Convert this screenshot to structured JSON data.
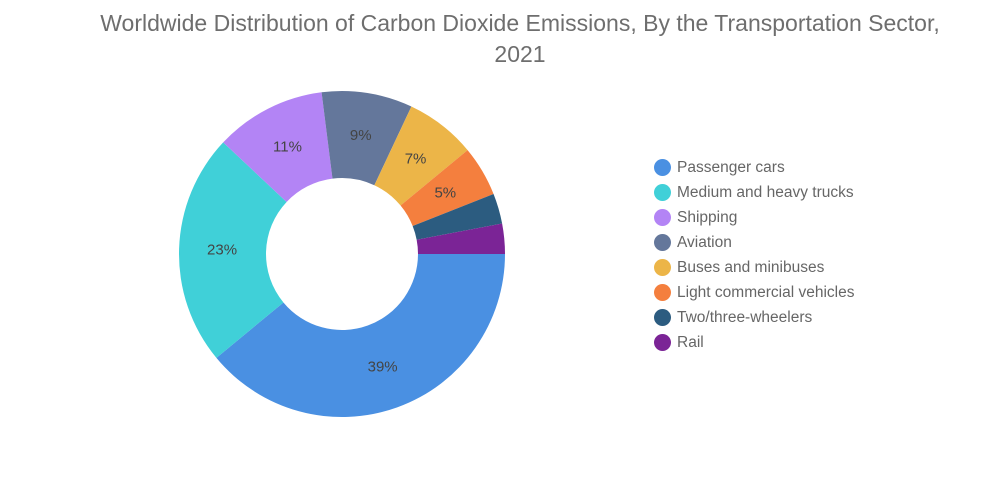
{
  "chart_data": {
    "type": "pie",
    "title": "Worldwide Distribution of Carbon Dioxide Emissions, By the Transportation Sector, 2021",
    "donut": true,
    "legend_position": "right",
    "categories": [
      "Passenger cars",
      "Medium and heavy trucks",
      "Shipping",
      "Aviation",
      "Buses and minibuses",
      "Light commercial vehicles",
      "Two/three-wheelers",
      "Rail"
    ],
    "values": [
      39,
      23,
      11,
      9,
      7,
      5,
      3,
      3
    ],
    "data_labels": [
      "39%",
      "23%",
      "11%",
      "9%",
      "7%",
      "5%",
      "",
      ""
    ],
    "colors": [
      "#4a90e2",
      "#40d0d8",
      "#b384f5",
      "#64779b",
      "#ecb548",
      "#f47f3e",
      "#2c5c80",
      "#7b2496"
    ]
  }
}
